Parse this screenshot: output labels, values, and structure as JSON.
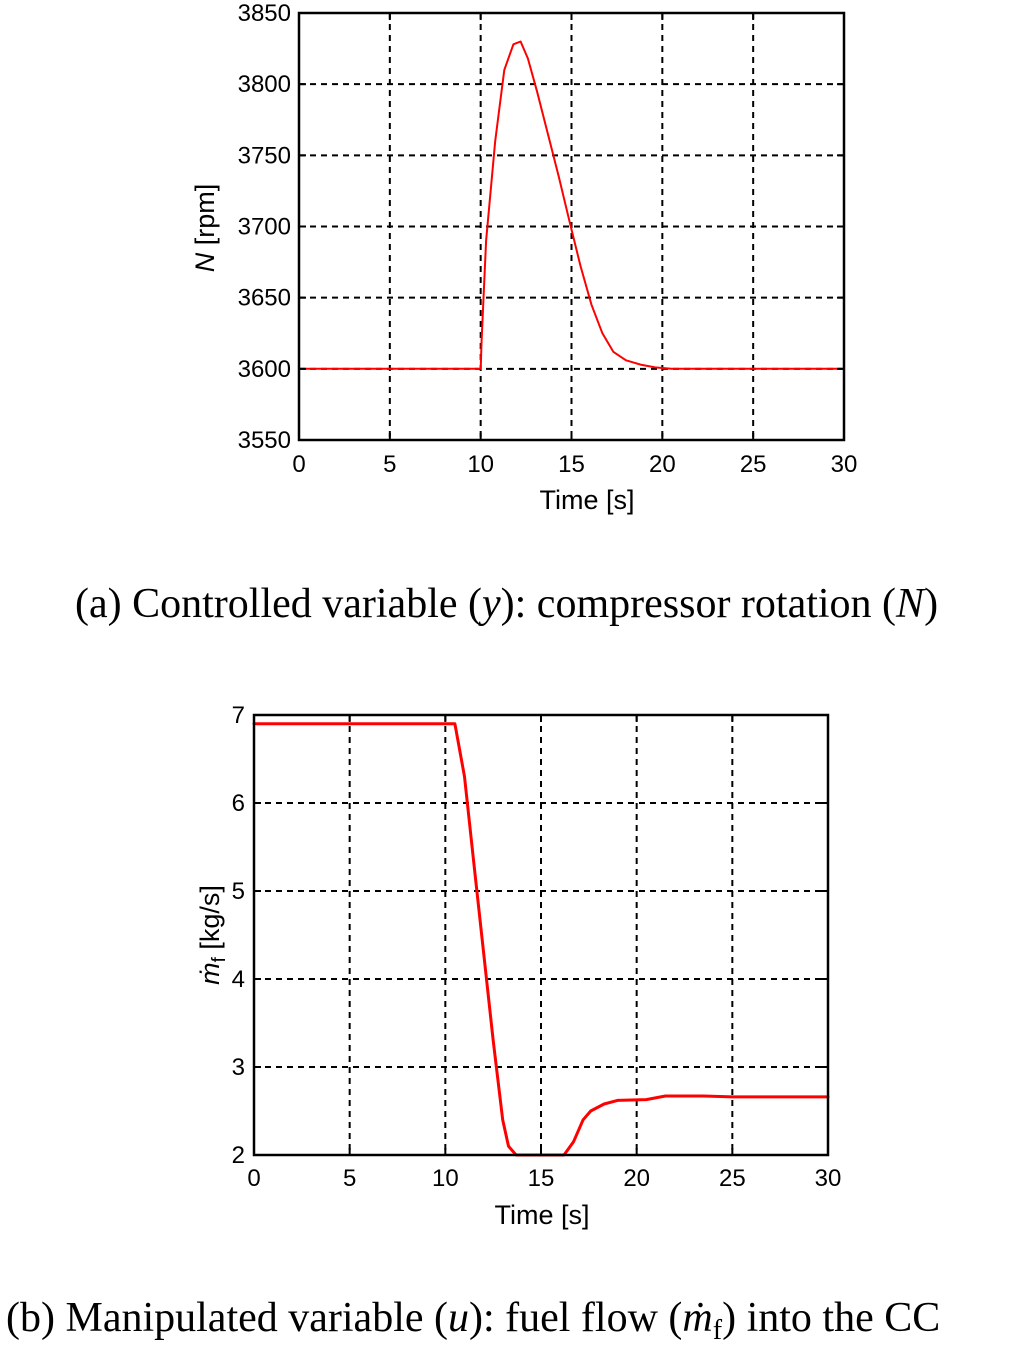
{
  "chart_data": [
    {
      "type": "line",
      "xlabel": "Time [s]",
      "ylabel_symbol": "N",
      "ylabel_unit": " [rpm]",
      "xlim": [
        0,
        30
      ],
      "ylim": [
        3550,
        3850
      ],
      "x_ticks": [
        "0",
        "5",
        "10",
        "15",
        "20",
        "25",
        "30"
      ],
      "y_ticks": [
        "3550",
        "3600",
        "3650",
        "3700",
        "3750",
        "3800",
        "3850"
      ],
      "grid": true,
      "series": [
        {
          "color": "#ff0000",
          "x": [
            0,
            10,
            10.05,
            10.3,
            10.8,
            11.3,
            11.8,
            12.2,
            12.6,
            13.1,
            13.7,
            14.3,
            14.9,
            15.5,
            16.1,
            16.7,
            17.3,
            18.0,
            18.8,
            19.6,
            20.5,
            21.5,
            30
          ],
          "y": [
            3600,
            3600,
            3620,
            3690,
            3760,
            3810,
            3828,
            3830,
            3818,
            3795,
            3765,
            3735,
            3703,
            3672,
            3645,
            3625,
            3612,
            3606,
            3603,
            3601,
            3600,
            3600,
            3600
          ]
        }
      ],
      "caption": {
        "prefix": "(a) Controlled variable (",
        "var1": "y",
        "mid": "): compressor rotation (",
        "var2": "N",
        "suffix": ")"
      }
    },
    {
      "type": "line",
      "xlabel": "Time [s]",
      "ylabel_symbol": "ṁ",
      "ylabel_sub": "f",
      "ylabel_unit": " [kg/s]",
      "xlim": [
        0,
        30
      ],
      "ylim": [
        2,
        7
      ],
      "x_ticks": [
        "0",
        "5",
        "10",
        "15",
        "20",
        "25",
        "30"
      ],
      "y_ticks": [
        "2",
        "3",
        "4",
        "5",
        "6",
        "7"
      ],
      "grid": true,
      "series": [
        {
          "color": "#ff0000",
          "x": [
            0,
            10.5,
            11.0,
            11.5,
            12.0,
            12.5,
            13.0,
            13.3,
            13.7,
            14.5,
            15.5,
            16.2,
            16.7,
            17.2,
            17.6,
            18.3,
            19.0,
            20.5,
            21.5,
            23.5,
            25,
            30
          ],
          "y": [
            6.9,
            6.9,
            6.3,
            5.3,
            4.3,
            3.3,
            2.4,
            2.1,
            2.0,
            2.0,
            2.0,
            2.0,
            2.15,
            2.4,
            2.5,
            2.58,
            2.62,
            2.63,
            2.67,
            2.67,
            2.66,
            2.66
          ]
        }
      ],
      "caption": {
        "prefix": "(b) Manipulated variable (",
        "var1": "u",
        "mid": "): fuel flow (",
        "var2": "ṁ",
        "var2_sub": "f",
        "suffix": ") into the CC"
      }
    }
  ]
}
